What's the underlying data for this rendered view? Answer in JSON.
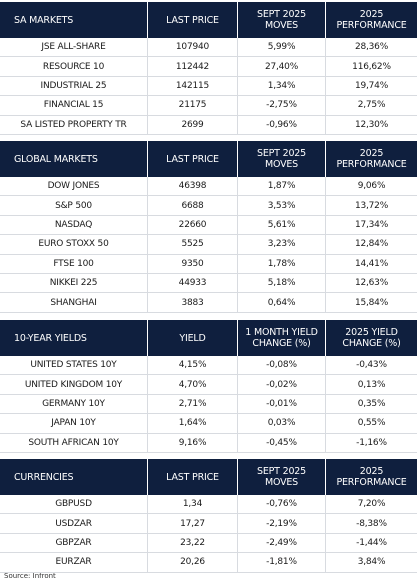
{
  "sections": [
    {
      "header": [
        "SA MARKETS",
        "LAST PRICE",
        "SEPT 2025 MOVES",
        "2025 PERFORMANCE"
      ],
      "rows": [
        [
          "JSE ALL-SHARE",
          "107940",
          "5,99%",
          "28,36%"
        ],
        [
          "RESOURCE 10",
          "112442",
          "27,40%",
          "116,62%"
        ],
        [
          "INDUSTRIAL 25",
          "142115",
          "1,34%",
          "19,74%"
        ],
        [
          "FINANCIAL 15",
          "21175",
          "-2,75%",
          "2,75%"
        ],
        [
          "SA LISTED PROPERTY TR",
          "2699",
          "-0,96%",
          "12,30%"
        ]
      ]
    },
    {
      "header": [
        "GLOBAL MARKETS",
        "LAST PRICE",
        "SEPT 2025 MOVES",
        "2025 PERFORMANCE"
      ],
      "rows": [
        [
          "DOW JONES",
          "46398",
          "1,87%",
          "9,06%"
        ],
        [
          "S&P 500",
          "6688",
          "3,53%",
          "13,72%"
        ],
        [
          "NASDAQ",
          "22660",
          "5,61%",
          "17,34%"
        ],
        [
          "EURO STOXX 50",
          "5525",
          "3,23%",
          "12,84%"
        ],
        [
          "FTSE 100",
          "9350",
          "1,78%",
          "14,41%"
        ],
        [
          "NIKKEI 225",
          "44933",
          "5,18%",
          "12,63%"
        ],
        [
          "SHANGHAI",
          "3883",
          "0,64%",
          "15,84%"
        ]
      ]
    },
    {
      "header": [
        "10-YEAR YIELDS",
        "YIELD",
        "1 MONTH YIELD CHANGE (%)",
        "2025 YIELD CHANGE (%)"
      ],
      "rows": [
        [
          "UNITED STATES 10Y",
          "4,15%",
          "-0,08%",
          "-0,43%"
        ],
        [
          "UNITED KINGDOM 10Y",
          "4,70%",
          "-0,02%",
          "0,13%"
        ],
        [
          "GERMANY 10Y",
          "2,71%",
          "-0,01%",
          "0,35%"
        ],
        [
          "JAPAN 10Y",
          "1,64%",
          "0,03%",
          "0,55%"
        ],
        [
          "SOUTH AFRICAN 10Y",
          "9,16%",
          "-0,45%",
          "-1,16%"
        ]
      ]
    },
    {
      "header": [
        "CURRENCIES",
        "LAST PRICE",
        "SEPT 2025 MOVES",
        "2025 PERFORMANCE"
      ],
      "rows": [
        [
          "GBPUSD",
          "1,34",
          "-0,76%",
          "7,20%"
        ],
        [
          "USDZAR",
          "17,27",
          "-2,19%",
          "-8,38%"
        ],
        [
          "GBPZAR",
          "23,22",
          "-2,49%",
          "-1,44%"
        ],
        [
          "EURZAR",
          "20,26",
          "-1,81%",
          "3,84%"
        ]
      ]
    }
  ],
  "source": "Source: Infront"
}
